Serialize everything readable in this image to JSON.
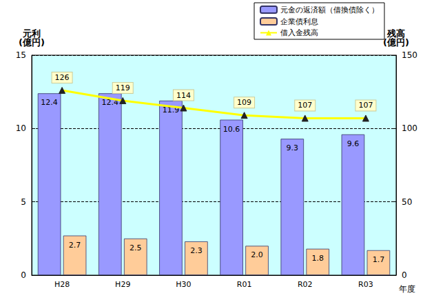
{
  "chart_data": {
    "type": "bar",
    "categories": [
      "H28",
      "H29",
      "H30",
      "R01",
      "R02",
      "R03"
    ],
    "x_label": "年度",
    "y_label": "元利\n(億円)",
    "y2_label": "残高\n(億円)",
    "series": [
      {
        "name": "元金の返済額（借換債除く）",
        "type": "bar",
        "color": "#9999ff",
        "values": [
          12.4,
          12.4,
          11.9,
          10.6,
          9.3,
          9.6
        ]
      },
      {
        "name": "企業債利息",
        "type": "bar",
        "color": "#ffcc99",
        "values": [
          2.7,
          2.5,
          2.3,
          2.0,
          1.8,
          1.7
        ],
        "value_labels": [
          "2.7",
          "2.5",
          "2.3",
          "2.0",
          "1.8",
          "1.7"
        ]
      },
      {
        "name": "借入金残高",
        "type": "line",
        "axis": "y2",
        "color": "#ffff00",
        "marker": "triangle",
        "values": [
          126,
          119,
          114,
          109,
          107,
          107
        ]
      }
    ],
    "ylim": [
      0,
      15
    ],
    "yticks": [
      0,
      5,
      10,
      15
    ],
    "y2lim": [
      0,
      150
    ],
    "y2ticks": [
      0,
      50,
      100,
      150
    ],
    "grid": true,
    "legend": "top-right",
    "data_labels": true
  }
}
